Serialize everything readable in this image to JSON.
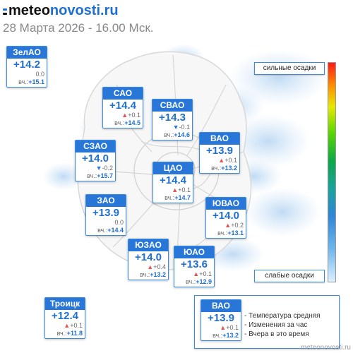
{
  "header": {
    "logo_prefix": "meteo",
    "logo_suffix": "novosti.ru",
    "datetime": "28 Марта 2026 - 16.00 Мск."
  },
  "scale": {
    "top_label": "сильные осадки",
    "bottom_label": "слабые осадки",
    "colors": [
      "#ff1a1a",
      "#ff8a00",
      "#e8e800",
      "#59d600",
      "#0aa84a",
      "#1aa3a0",
      "#2f86d8",
      "#6fb6ee",
      "#dbefff"
    ]
  },
  "districts": [
    {
      "id": "zelao",
      "name": "ЗелАО",
      "temp": "+14.2",
      "change": "0.0",
      "trend": "none",
      "yest_label": "вч.:",
      "yest": "+15.1"
    },
    {
      "id": "sao",
      "name": "САО",
      "temp": "+14.4",
      "change": "+0.1",
      "trend": "up",
      "yest_label": "вч.:",
      "yest": "+14.5"
    },
    {
      "id": "svao",
      "name": "СВАО",
      "temp": "+14.3",
      "change": "-0.1",
      "trend": "down",
      "yest_label": "вч.:",
      "yest": "+14.6"
    },
    {
      "id": "szao",
      "name": "СЗАО",
      "temp": "+14.0",
      "change": "-0.2",
      "trend": "down",
      "yest_label": "вч.:",
      "yest": "+15.7"
    },
    {
      "id": "vao",
      "name": "ВАО",
      "temp": "+13.9",
      "change": "+0.1",
      "trend": "up",
      "yest_label": "вч.:",
      "yest": "+13.2"
    },
    {
      "id": "cao",
      "name": "ЦАО",
      "temp": "+14.4",
      "change": "+0.1",
      "trend": "up",
      "yest_label": "вч.:",
      "yest": "+14.7"
    },
    {
      "id": "zao",
      "name": "ЗАО",
      "temp": "+13.9",
      "change": "0.0",
      "trend": "none",
      "yest_label": "вч.:",
      "yest": "+14.4"
    },
    {
      "id": "yuvao",
      "name": "ЮВАО",
      "temp": "+14.0",
      "change": "+0.2",
      "trend": "up",
      "yest_label": "вч.:",
      "yest": "+13.1"
    },
    {
      "id": "yuzao",
      "name": "ЮЗАО",
      "temp": "+14.0",
      "change": "+0.4",
      "trend": "up",
      "yest_label": "вч.:",
      "yest": "+13.2"
    },
    {
      "id": "yuao",
      "name": "ЮАО",
      "temp": "+13.6",
      "change": "+0.1",
      "trend": "up",
      "yest_label": "вч.:",
      "yest": "+12.9"
    },
    {
      "id": "troitsk",
      "name": "Троицк",
      "temp": "+12.4",
      "change": "+0.1",
      "trend": "up",
      "yest_label": "вч.:",
      "yest": "+11.8"
    }
  ],
  "legend": {
    "sample": {
      "name": "ВАО",
      "temp": "+13.9",
      "change": "+0.1",
      "trend": "up",
      "yest_label": "вч.:",
      "yest": "+13.2"
    },
    "items": [
      "Температура средняя",
      "Изменения за час",
      "Вчера в это время"
    ]
  },
  "source": "meteonovosti.ru"
}
